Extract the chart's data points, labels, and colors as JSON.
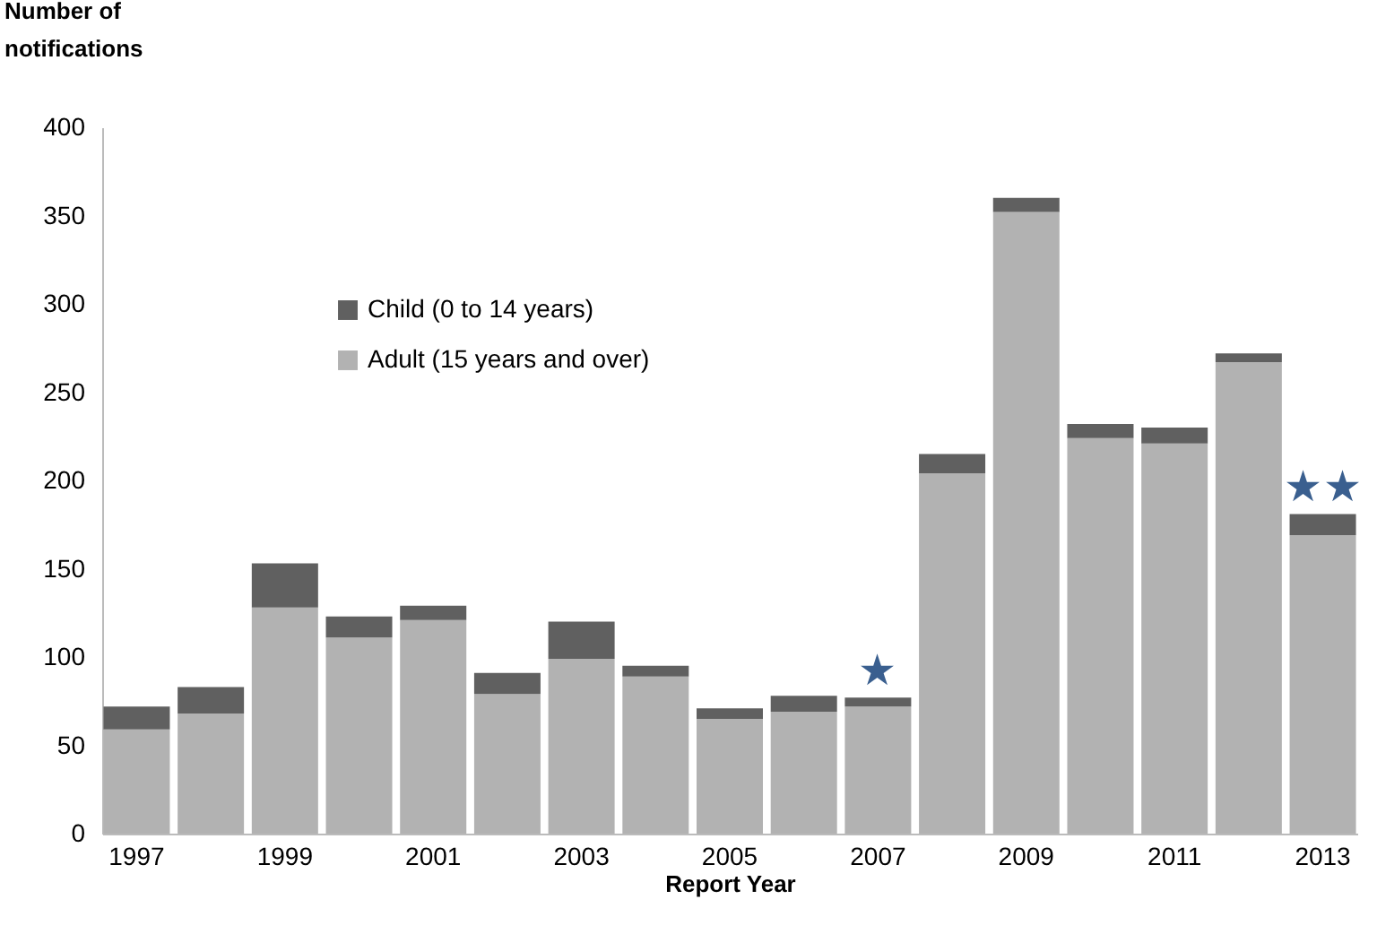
{
  "chart_data": {
    "type": "bar",
    "stacked": true,
    "xlabel": "Report Year",
    "ylabel": "Number of notifications",
    "categories": [
      "1997",
      null,
      "1999",
      null,
      "2001",
      null,
      "2003",
      null,
      "2005",
      null,
      "2007",
      null,
      "2009",
      null,
      "2011",
      null,
      "2013"
    ],
    "series": [
      {
        "name": "Adult (15 years and over)",
        "color": "#b2b2b2",
        "values": [
          59,
          68,
          128,
          111,
          121,
          79,
          99,
          89,
          65,
          69,
          72,
          204,
          352,
          224,
          221,
          267,
          169
        ]
      },
      {
        "name": "Child (0 to 14 years)",
        "color": "#606060",
        "values": [
          13,
          15,
          25,
          12,
          8,
          12,
          21,
          6,
          6,
          9,
          5,
          11,
          8,
          8,
          9,
          5,
          12
        ]
      }
    ],
    "ylim": [
      0,
      400
    ],
    "yticks": [
      0,
      50,
      100,
      150,
      200,
      250,
      300,
      350,
      400
    ],
    "grid": false,
    "legend": "top left",
    "annotations": [
      {
        "text": "★",
        "x": "2007",
        "y": 77
      },
      {
        "text": "★★",
        "x": "2013",
        "y": 181
      }
    ]
  }
}
